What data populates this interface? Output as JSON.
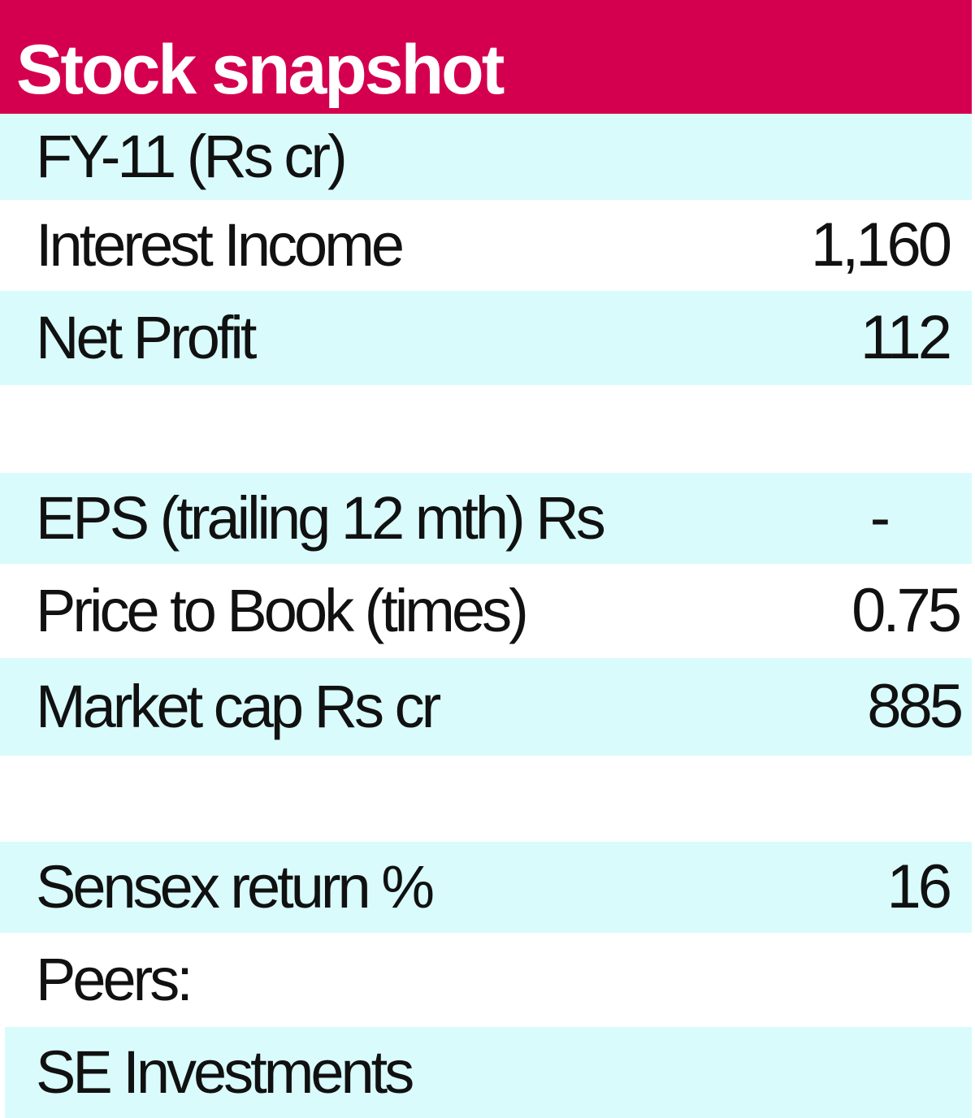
{
  "header": {
    "title": "Stock snapshot",
    "background_color": "#d4004f",
    "text_color": "#ffffff"
  },
  "row_colors": {
    "shaded": "#d9fbfb",
    "plain": "#ffffff"
  },
  "section_financials": {
    "heading": "FY-11  (Rs cr)",
    "rows": [
      {
        "label": "Interest Income",
        "value": "1,160"
      },
      {
        "label": "Net Profit",
        "value": "112"
      }
    ]
  },
  "section_valuation": {
    "rows": [
      {
        "label": "EPS (trailing 12 mth) Rs",
        "value": "-"
      },
      {
        "label": "Price to Book (times)",
        "value": "0.75"
      },
      {
        "label": "Market cap Rs cr",
        "value": "885"
      }
    ]
  },
  "section_returns": {
    "rows": [
      {
        "label": "Sensex return %",
        "value": "16"
      }
    ]
  },
  "peers": {
    "heading": "Peers:",
    "items": [
      "SE Investments"
    ]
  }
}
